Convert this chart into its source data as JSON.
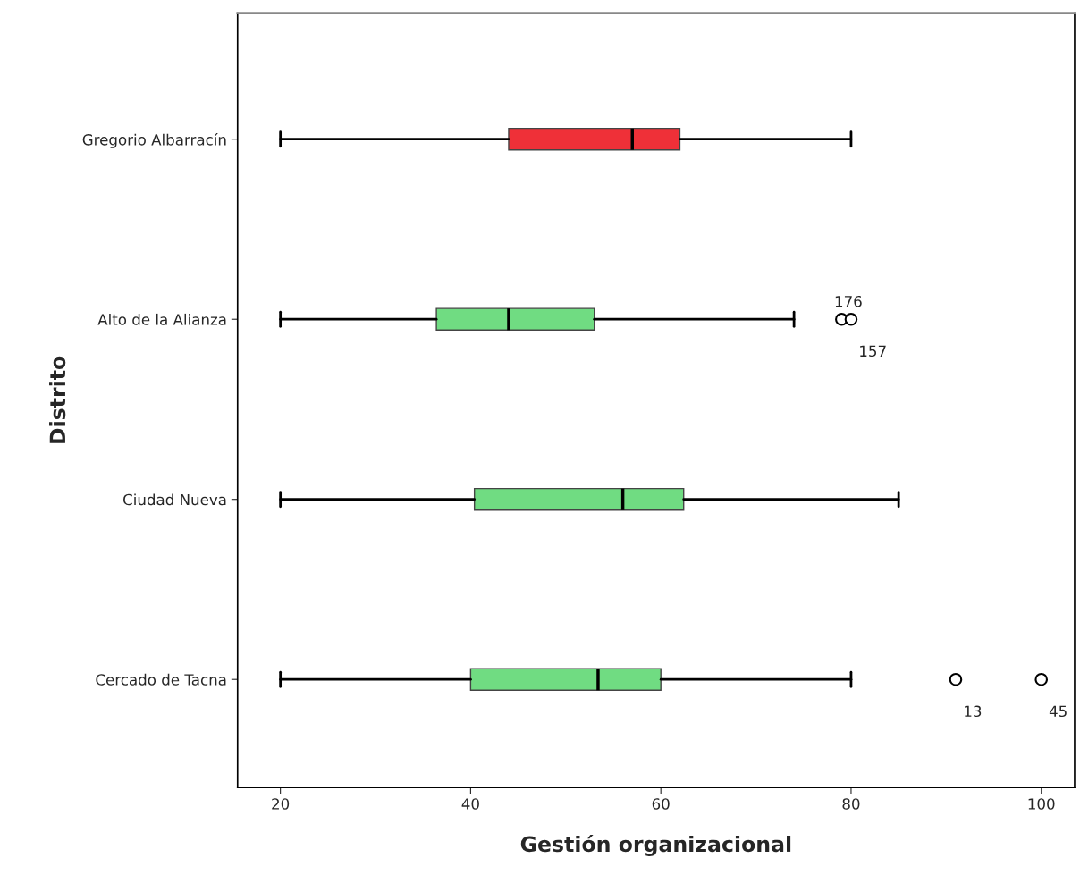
{
  "chart_data": {
    "type": "box",
    "orientation": "horizontal",
    "xlabel": "Gestión organizacional",
    "ylabel": "Distrito",
    "categories": [
      "Gregorio Albarracín",
      "Alto de la Alianza",
      "Ciudad Nueva",
      "Cercado de Tacna"
    ],
    "colors": [
      "#ef3038",
      "#70dc82",
      "#70dc82",
      "#70dc82"
    ],
    "boxes": [
      {
        "low": 20,
        "q1": 44,
        "median": 57,
        "q3": 62,
        "high": 80
      },
      {
        "low": 20,
        "q1": 36.4,
        "median": 44,
        "q3": 53,
        "high": 74,
        "outliers": [
          79,
          80
        ]
      },
      {
        "low": 20,
        "q1": 40.4,
        "median": 56,
        "q3": 62.4,
        "high": 85
      },
      {
        "low": 20,
        "q1": 40,
        "median": 53.4,
        "q3": 60,
        "high": 80,
        "outliers": [
          91,
          100
        ]
      }
    ],
    "xlim": [
      15.5,
      103.5
    ],
    "xticks": [
      20,
      40,
      60,
      80,
      100
    ],
    "grid": false,
    "annotations": [
      "176",
      "157",
      "13",
      "45"
    ]
  }
}
